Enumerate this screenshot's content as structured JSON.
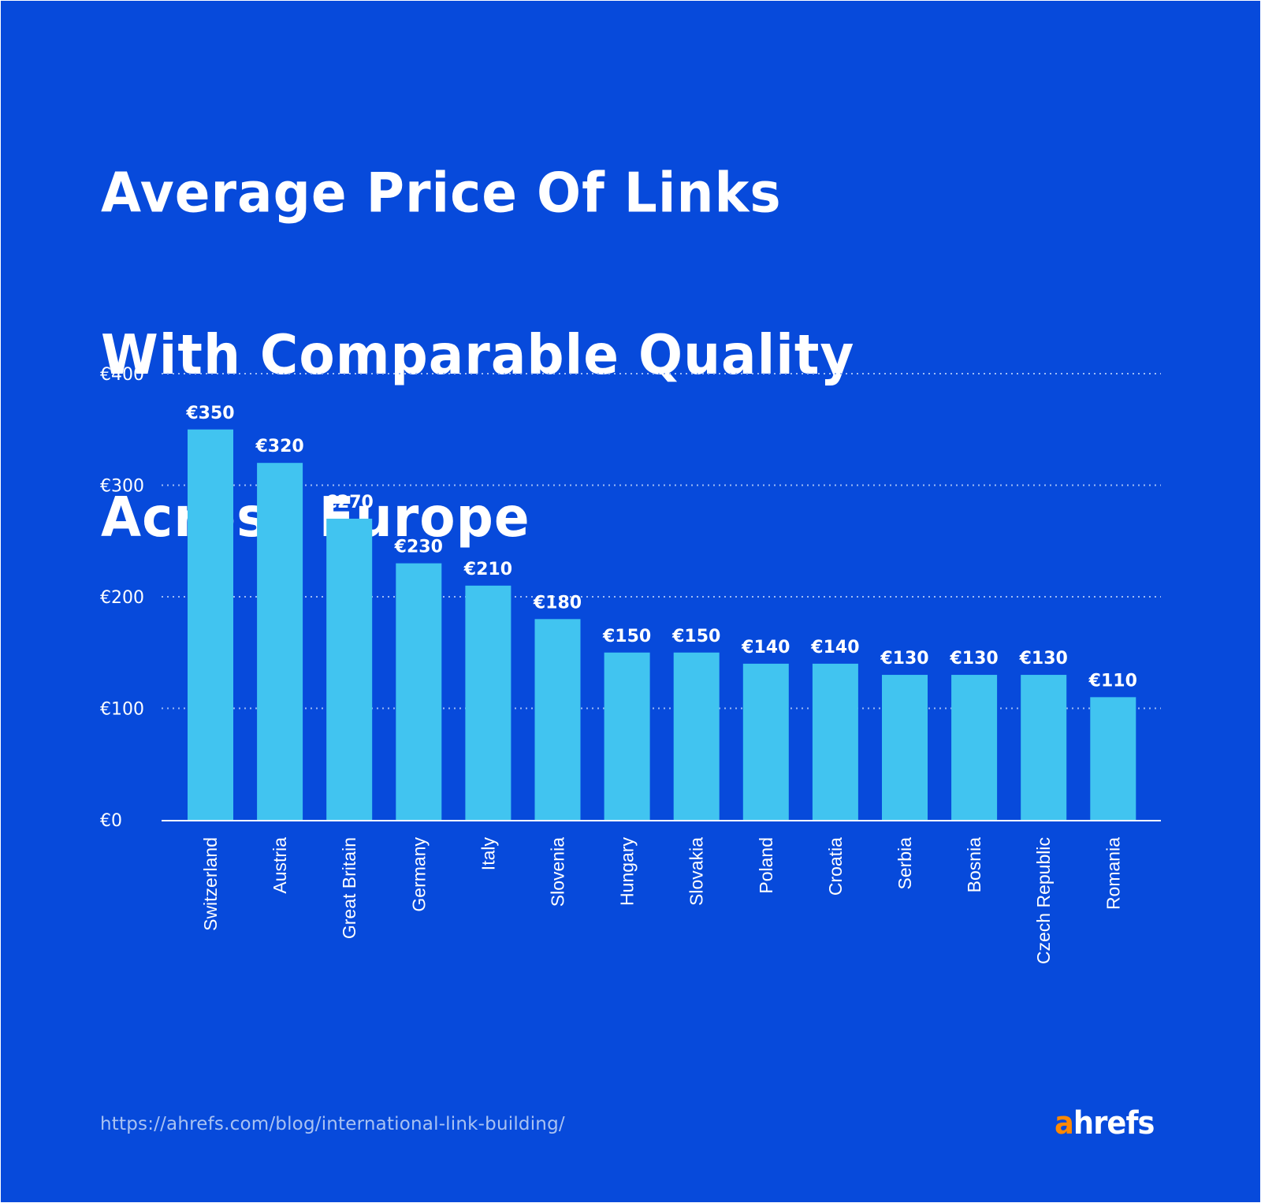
{
  "colors": {
    "background": "#074ADB",
    "bar": "#41C4F0",
    "text": "#FFFFFF",
    "gridline": "#9FBCF5",
    "source_text": "#A9C2F2",
    "logo_accent": "#FF8800"
  },
  "header": {
    "title_lines": [
      "Average Price Of Links",
      "With Comparable Quality",
      "Across Europe"
    ]
  },
  "chart_data": {
    "type": "bar",
    "title": "Average Price Of Links With Comparable Quality Across Europe",
    "xlabel": "",
    "ylabel": "",
    "currency_symbol": "€",
    "categories": [
      "Switzerland",
      "Austria",
      "Great Britain",
      "Germany",
      "Italy",
      "Slovenia",
      "Hungary",
      "Slovakia",
      "Poland",
      "Croatia",
      "Serbia",
      "Bosnia",
      "Czech Republic",
      "Romania"
    ],
    "values": [
      350,
      320,
      270,
      230,
      210,
      180,
      150,
      150,
      140,
      140,
      130,
      130,
      130,
      110
    ],
    "data_labels": [
      "€350",
      "€320",
      "€270",
      "€230",
      "€210",
      "€180",
      "€150",
      "€150",
      "€140",
      "€140",
      "€130",
      "€130",
      "€130",
      "€110"
    ],
    "ylim": [
      0,
      400
    ],
    "yticks": [
      0,
      100,
      200,
      300,
      400
    ],
    "ytick_labels": [
      "€0",
      "€100",
      "€200",
      "€300",
      "€400"
    ],
    "grid": true,
    "grid_style": "dotted",
    "x_tick_rotation": "vertical",
    "legend": "none"
  },
  "footer": {
    "source_url": "https://ahrefs.com/blog/international-link-building/",
    "logo_accent_text": "a",
    "logo_rest_text": "hrefs"
  }
}
